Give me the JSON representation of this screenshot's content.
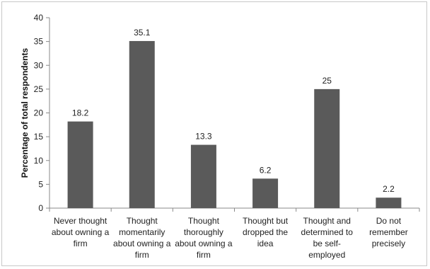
{
  "chart_data": {
    "type": "bar",
    "title": "",
    "xlabel": "",
    "ylabel": "Percentage of total respondents",
    "ylim": [
      0,
      40
    ],
    "yticks": [
      0,
      5,
      10,
      15,
      20,
      25,
      30,
      35,
      40
    ],
    "grid": false,
    "legend": "none",
    "bar_color": "#5a5a5a",
    "categories": [
      [
        "Never thought",
        "about owning a",
        "firm"
      ],
      [
        "Thought",
        "momentarily",
        "about owning a",
        "firm"
      ],
      [
        "Thought",
        "thoroughly",
        "about owning a",
        "firm"
      ],
      [
        "Thought but",
        "dropped the",
        "idea"
      ],
      [
        "Thought and",
        "determined to",
        "be self-",
        "employed"
      ],
      [
        "Do not",
        "remember",
        "precisely"
      ]
    ],
    "values": [
      18.2,
      35.1,
      13.3,
      6.2,
      25,
      2.2
    ],
    "data_labels": [
      "18.2",
      "35.1",
      "13.3",
      "6.2",
      "25",
      "2.2"
    ]
  }
}
